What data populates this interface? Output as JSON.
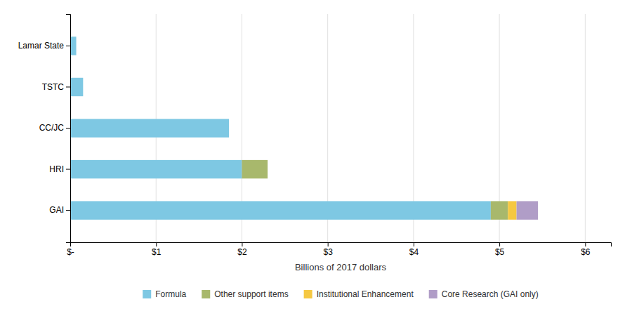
{
  "chart_data": {
    "type": "bar",
    "orientation": "horizontal",
    "stacked": true,
    "categories": [
      "GAI",
      "HRI",
      "CC/JC",
      "TSTC",
      "Lamar State"
    ],
    "series": [
      {
        "name": "Formula",
        "color": "#7EC8E3",
        "values": [
          4.9,
          2.0,
          1.85,
          0.15,
          0.07
        ]
      },
      {
        "name": "Other support items",
        "color": "#A8B86C",
        "values": [
          0.2,
          0.3,
          0.0,
          0.0,
          0.0
        ]
      },
      {
        "name": "Institutional Enhancement",
        "color": "#F5C842",
        "values": [
          0.1,
          0.0,
          0.0,
          0.0,
          0.0
        ]
      },
      {
        "name": "Core Research (GAI only)",
        "color": "#B09DC7",
        "values": [
          0.25,
          0.0,
          0.0,
          0.0,
          0.0
        ]
      }
    ],
    "xlabel": "Billions of 2017 dollars",
    "xlim": [
      0,
      6.3
    ],
    "xticks": [
      {
        "value": 0,
        "label": "$-"
      },
      {
        "value": 1,
        "label": "$1"
      },
      {
        "value": 2,
        "label": "$2"
      },
      {
        "value": 3,
        "label": "$3"
      },
      {
        "value": 4,
        "label": "$4"
      },
      {
        "value": 5,
        "label": "$5"
      },
      {
        "value": 6,
        "label": "$6"
      }
    ],
    "grid": true,
    "legend": "bottom"
  }
}
